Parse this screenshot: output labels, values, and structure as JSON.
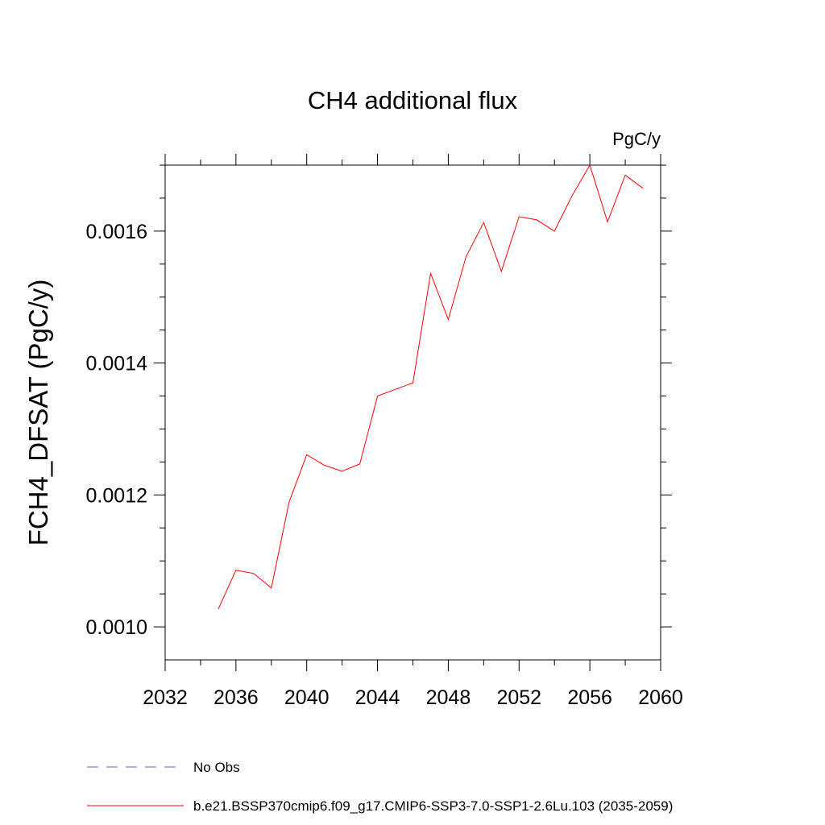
{
  "chart_data": {
    "type": "line",
    "title": "CH4 additional flux",
    "units": "PgC/y",
    "ylabel": "FCH4_DFSAT  (PgC/y)",
    "xlabel": "",
    "xlim": [
      2032,
      2060
    ],
    "ylim": [
      0.00095,
      0.0017
    ],
    "x_ticks": [
      2032,
      2036,
      2040,
      2044,
      2048,
      2052,
      2056,
      2060
    ],
    "x_tick_labels": [
      "2032",
      "2036",
      "2040",
      "2044",
      "2048",
      "2052",
      "2056",
      "2060"
    ],
    "y_ticks": [
      0.001,
      0.0012,
      0.0014,
      0.0016
    ],
    "y_tick_labels": [
      "0.0010",
      "0.0012",
      "0.0014",
      "0.0016"
    ],
    "grid": false,
    "legend_placement": "bottom",
    "series": [
      {
        "name": "No Obs",
        "color": "#6a5acd",
        "style": "dashed",
        "x": [],
        "y": []
      },
      {
        "name": "b.e21.BSSP370cmip6.f09_g17.CMIP6-SSP3-7.0-SSP1-2.6Lu.103 (2035-2059)",
        "color": "#ff0000",
        "style": "solid",
        "x": [
          2035,
          2036,
          2037,
          2038,
          2039,
          2040,
          2041,
          2042,
          2043,
          2044,
          2045,
          2046,
          2047,
          2048,
          2049,
          2050,
          2051,
          2052,
          2053,
          2054,
          2055,
          2056,
          2057,
          2058,
          2059
        ],
        "y": [
          0.001027,
          0.001086,
          0.001081,
          0.001059,
          0.001189,
          0.001261,
          0.001245,
          0.001236,
          0.001247,
          0.00135,
          0.00136,
          0.00137,
          0.001536,
          0.001466,
          0.001561,
          0.001613,
          0.001539,
          0.001622,
          0.001617,
          0.0016,
          0.001654,
          0.0017,
          0.001614,
          0.001685,
          0.001665
        ]
      }
    ]
  }
}
